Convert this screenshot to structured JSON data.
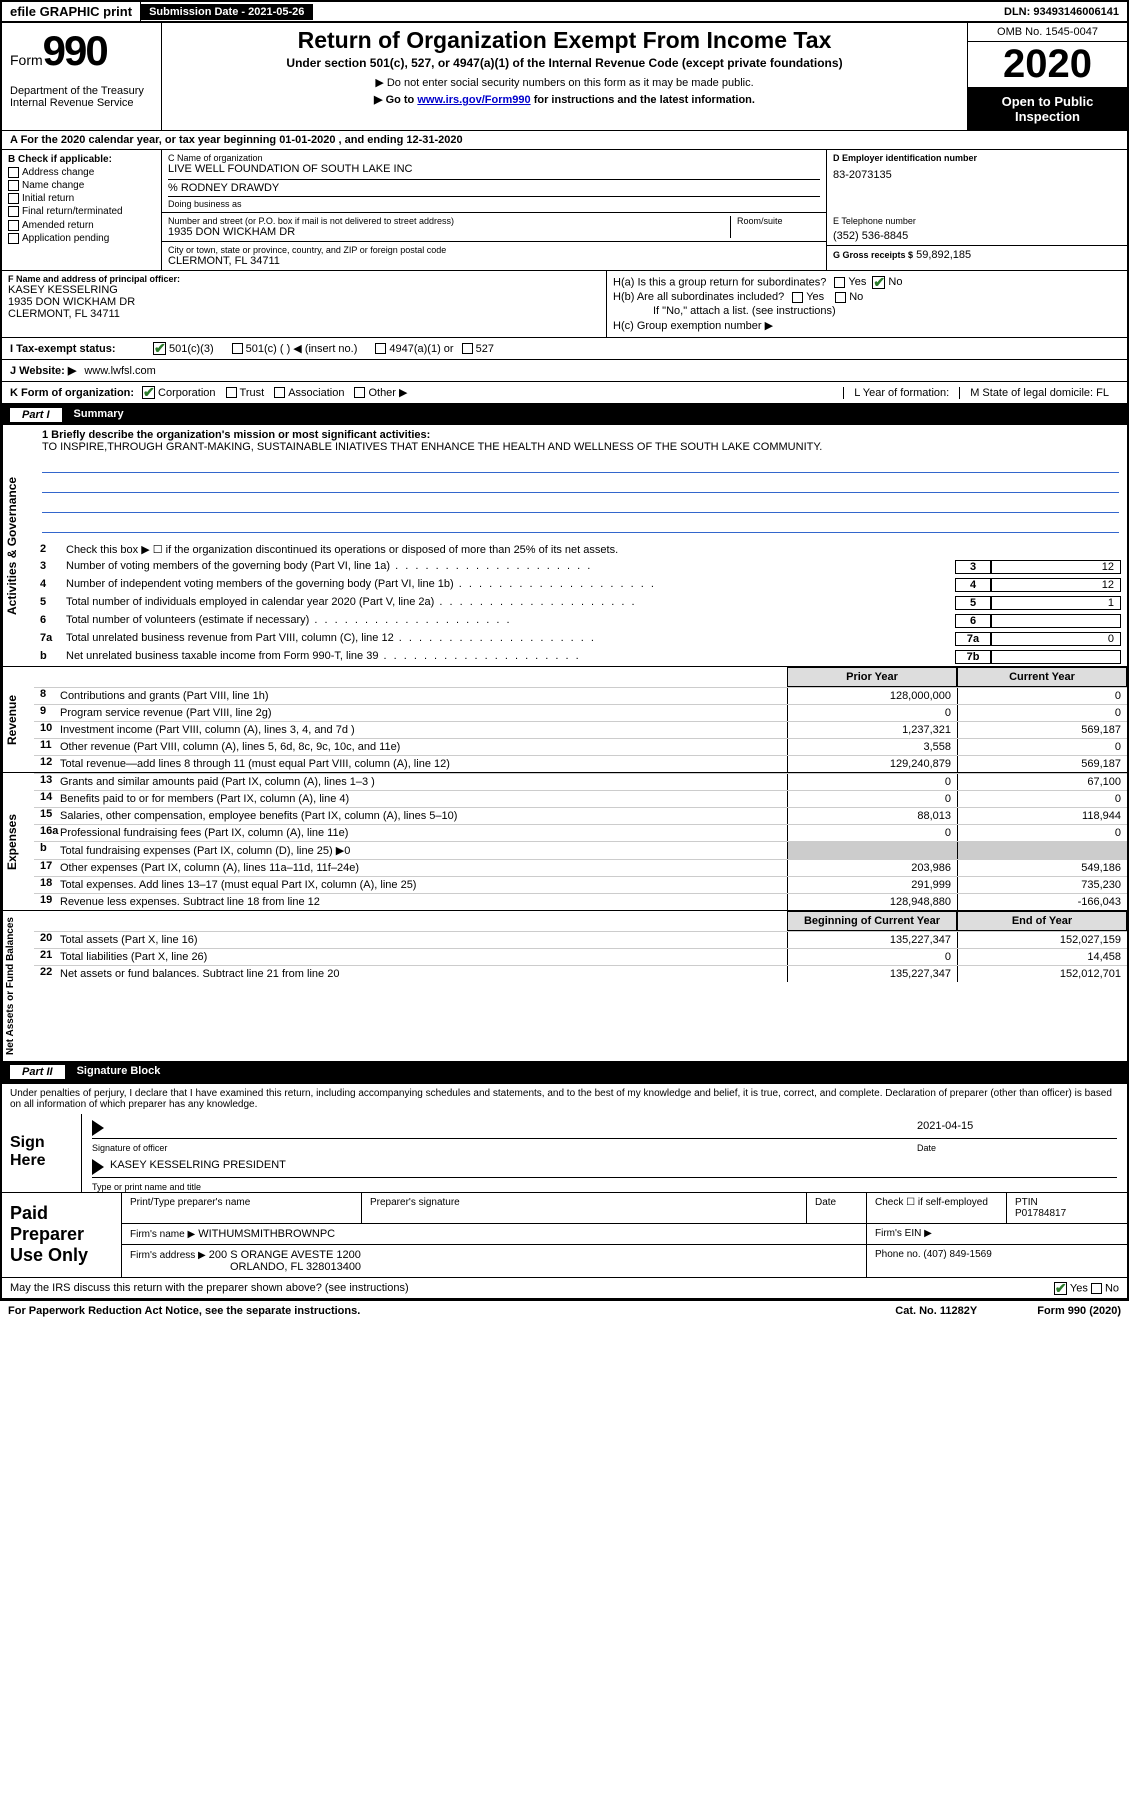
{
  "topbar": {
    "efile": "efile GRAPHIC print",
    "submission": "Submission Date - 2021-05-26",
    "dln": "DLN: 93493146006141"
  },
  "header": {
    "form_label": "Form",
    "form_num": "990",
    "dept": "Department of the Treasury\nInternal Revenue Service",
    "title": "Return of Organization Exempt From Income Tax",
    "sub1": "Under section 501(c), 527, or 4947(a)(1) of the Internal Revenue Code (except private foundations)",
    "sub2": "▶ Do not enter social security numbers on this form as it may be made public.",
    "sub3_pre": "▶ Go to ",
    "sub3_link": "www.irs.gov/Form990",
    "sub3_post": " for instructions and the latest information.",
    "omb": "OMB No. 1545-0047",
    "year": "2020",
    "inspect": "Open to Public Inspection"
  },
  "tax_year": "A For the 2020 calendar year, or tax year beginning 01-01-2020   , and ending 12-31-2020",
  "b": {
    "hdr": "B Check if applicable:",
    "items": [
      "Address change",
      "Name change",
      "Initial return",
      "Final return/terminated",
      "Amended return",
      "Application pending"
    ]
  },
  "c": {
    "name_lbl": "C Name of organization",
    "name": "LIVE WELL FOUNDATION OF SOUTH LAKE INC",
    "care_of": "% RODNEY DRAWDY",
    "dba_lbl": "Doing business as",
    "addr_lbl": "Number and street (or P.O. box if mail is not delivered to street address)",
    "room_lbl": "Room/suite",
    "addr": "1935 DON WICKHAM DR",
    "city_lbl": "City or town, state or province, country, and ZIP or foreign postal code",
    "city": "CLERMONT, FL  34711"
  },
  "d": {
    "lbl": "D Employer identification number",
    "val": "83-2073135"
  },
  "e": {
    "lbl": "E Telephone number",
    "val": "(352) 536-8845"
  },
  "g": {
    "lbl": "G Gross receipts $",
    "val": "59,892,185"
  },
  "f": {
    "lbl": "F  Name and address of principal officer:",
    "name": "KASEY KESSELRING",
    "addr1": "1935 DON WICKHAM DR",
    "addr2": "CLERMONT, FL  34711"
  },
  "h": {
    "a": "H(a)  Is this a group return for subordinates?",
    "b": "H(b)  Are all subordinates included?",
    "b_note": "If \"No,\" attach a list. (see instructions)",
    "c": "H(c)  Group exemption number ▶"
  },
  "i": {
    "lbl": "I  Tax-exempt status:",
    "opts": [
      "501(c)(3)",
      "501(c) (  ) ◀ (insert no.)",
      "4947(a)(1) or",
      "527"
    ]
  },
  "j": {
    "lbl": "J   Website: ▶",
    "val": "www.lwfsl.com"
  },
  "k": {
    "lbl": "K Form of organization:",
    "opts": [
      "Corporation",
      "Trust",
      "Association",
      "Other ▶"
    ],
    "l_lbl": "L Year of formation:",
    "m_lbl": "M State of legal domicile: FL"
  },
  "part1": {
    "num": "Part I",
    "title": "Summary"
  },
  "summary": {
    "l1_lbl": "1  Briefly describe the organization's mission or most significant activities:",
    "l1_txt": "TO INSPIRE,THROUGH GRANT-MAKING, SUSTAINABLE INIATIVES THAT ENHANCE THE HEALTH AND WELLNESS OF THE SOUTH LAKE COMMUNITY.",
    "l2": "Check this box ▶ ☐  if the organization discontinued its operations or disposed of more than 25% of its net assets.",
    "lines_ag": [
      {
        "n": "3",
        "t": "Number of voting members of the governing body (Part VI, line 1a)",
        "box": "3",
        "v": "12"
      },
      {
        "n": "4",
        "t": "Number of independent voting members of the governing body (Part VI, line 1b)",
        "box": "4",
        "v": "12"
      },
      {
        "n": "5",
        "t": "Total number of individuals employed in calendar year 2020 (Part V, line 2a)",
        "box": "5",
        "v": "1"
      },
      {
        "n": "6",
        "t": "Total number of volunteers (estimate if necessary)",
        "box": "6",
        "v": ""
      },
      {
        "n": "7a",
        "t": "Total unrelated business revenue from Part VIII, column (C), line 12",
        "box": "7a",
        "v": "0"
      },
      {
        "n": "b",
        "t": "Net unrelated business taxable income from Form 990-T, line 39",
        "box": "7b",
        "v": ""
      }
    ],
    "prior_hdr": "Prior Year",
    "curr_hdr": "Current Year",
    "rev": [
      {
        "n": "8",
        "t": "Contributions and grants (Part VIII, line 1h)",
        "p": "128,000,000",
        "c": "0"
      },
      {
        "n": "9",
        "t": "Program service revenue (Part VIII, line 2g)",
        "p": "0",
        "c": "0"
      },
      {
        "n": "10",
        "t": "Investment income (Part VIII, column (A), lines 3, 4, and 7d )",
        "p": "1,237,321",
        "c": "569,187"
      },
      {
        "n": "11",
        "t": "Other revenue (Part VIII, column (A), lines 5, 6d, 8c, 9c, 10c, and 11e)",
        "p": "3,558",
        "c": "0"
      },
      {
        "n": "12",
        "t": "Total revenue—add lines 8 through 11 (must equal Part VIII, column (A), line 12)",
        "p": "129,240,879",
        "c": "569,187"
      }
    ],
    "exp": [
      {
        "n": "13",
        "t": "Grants and similar amounts paid (Part IX, column (A), lines 1–3 )",
        "p": "0",
        "c": "67,100"
      },
      {
        "n": "14",
        "t": "Benefits paid to or for members (Part IX, column (A), line 4)",
        "p": "0",
        "c": "0"
      },
      {
        "n": "15",
        "t": "Salaries, other compensation, employee benefits (Part IX, column (A), lines 5–10)",
        "p": "88,013",
        "c": "118,944"
      },
      {
        "n": "16a",
        "t": "Professional fundraising fees (Part IX, column (A), line 11e)",
        "p": "0",
        "c": "0"
      },
      {
        "n": "b",
        "t": "Total fundraising expenses (Part IX, column (D), line 25) ▶0",
        "p": "",
        "c": "",
        "shade": true
      },
      {
        "n": "17",
        "t": "Other expenses (Part IX, column (A), lines 11a–11d, 11f–24e)",
        "p": "203,986",
        "c": "549,186"
      },
      {
        "n": "18",
        "t": "Total expenses. Add lines 13–17 (must equal Part IX, column (A), line 25)",
        "p": "291,999",
        "c": "735,230"
      },
      {
        "n": "19",
        "t": "Revenue less expenses. Subtract line 18 from line 12",
        "p": "128,948,880",
        "c": "-166,043"
      }
    ],
    "boy_hdr": "Beginning of Current Year",
    "eoy_hdr": "End of Year",
    "na": [
      {
        "n": "20",
        "t": "Total assets (Part X, line 16)",
        "p": "135,227,347",
        "c": "152,027,159"
      },
      {
        "n": "21",
        "t": "Total liabilities (Part X, line 26)",
        "p": "0",
        "c": "14,458"
      },
      {
        "n": "22",
        "t": "Net assets or fund balances. Subtract line 21 from line 20",
        "p": "135,227,347",
        "c": "152,012,701"
      }
    ]
  },
  "vtabs": {
    "ag": "Activities & Governance",
    "rev": "Revenue",
    "exp": "Expenses",
    "na": "Net Assets or Fund Balances"
  },
  "part2": {
    "num": "Part II",
    "title": "Signature Block"
  },
  "sig": {
    "penalty": "Under penalties of perjury, I declare that I have examined this return, including accompanying schedules and statements, and to the best of my knowledge and belief, it is true, correct, and complete. Declaration of preparer (other than officer) is based on all information of which preparer has any knowledge.",
    "here": "Sign Here",
    "sig_lbl": "Signature of officer",
    "date_lbl": "Date",
    "date": "2021-04-15",
    "name": "KASEY KESSELRING  PRESIDENT",
    "name_lbl": "Type or print name and title"
  },
  "paid": {
    "title": "Paid Preparer Use Only",
    "h1": "Print/Type preparer's name",
    "h2": "Preparer's signature",
    "h3": "Date",
    "h4_a": "Check ☐ if self-employed",
    "h4_b": "PTIN",
    "ptin": "P01784817",
    "firm_lbl": "Firm's name    ▶",
    "firm": "WITHUMSMITHBROWNPC",
    "ein_lbl": "Firm's EIN ▶",
    "addr_lbl": "Firm's address ▶",
    "addr1": "200 S ORANGE AVESTE 1200",
    "addr2": "ORLANDO, FL  328013400",
    "phone_lbl": "Phone no.",
    "phone": "(407) 849-1569"
  },
  "discuss": "May the IRS discuss this return with the preparer shown above? (see instructions)",
  "footer": {
    "pra": "For Paperwork Reduction Act Notice, see the separate instructions.",
    "cat": "Cat. No. 11282Y",
    "form": "Form 990 (2020)"
  }
}
